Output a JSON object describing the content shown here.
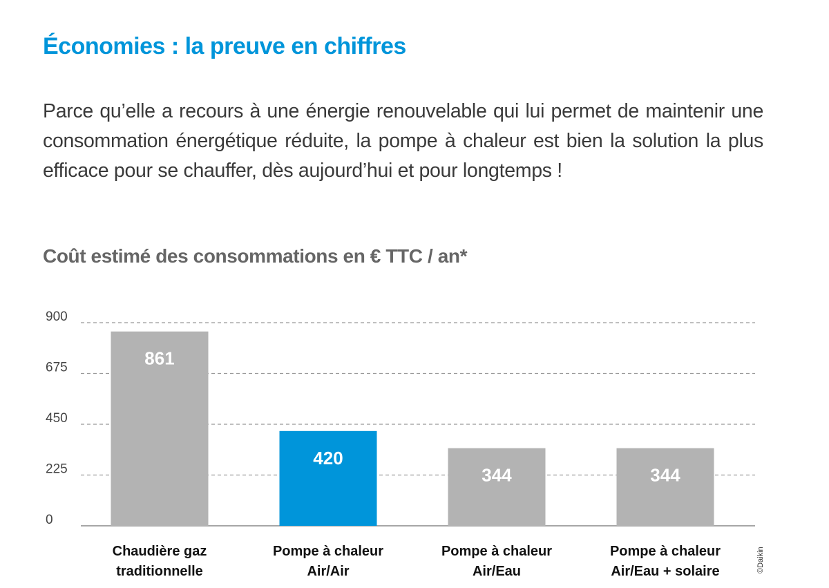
{
  "header": {
    "title": "Économies : la preuve en chiffres",
    "paragraph": "Parce qu’elle a recours à une énergie renouvelable qui lui permet de maintenir une consommation énergétique réduite, la pompe à chaleur est bien la solution la plus efficace pour se chauffer, dès aujourd’hui et pour longtemps !"
  },
  "credit": "©Daikin",
  "colors": {
    "accent": "#0095da",
    "bar": "#b3b3b3",
    "title": "#0095da"
  },
  "chart_data": {
    "type": "bar",
    "title": "Coût estimé des consommations en € TTC / an*",
    "categories": [
      [
        "Chaudière gaz",
        "traditionnelle"
      ],
      [
        "Pompe à chaleur",
        "Air/Air"
      ],
      [
        "Pompe à chaleur",
        "Air/Eau"
      ],
      [
        "Pompe à chaleur",
        "Air/Eau + solaire"
      ]
    ],
    "values": [
      861,
      420,
      344,
      344
    ],
    "highlight": [
      false,
      true,
      false,
      false
    ],
    "yticks": [
      0,
      225,
      450,
      675,
      900
    ],
    "ylim": [
      0,
      900
    ],
    "grid": true,
    "xlabel": "",
    "ylabel": ""
  }
}
